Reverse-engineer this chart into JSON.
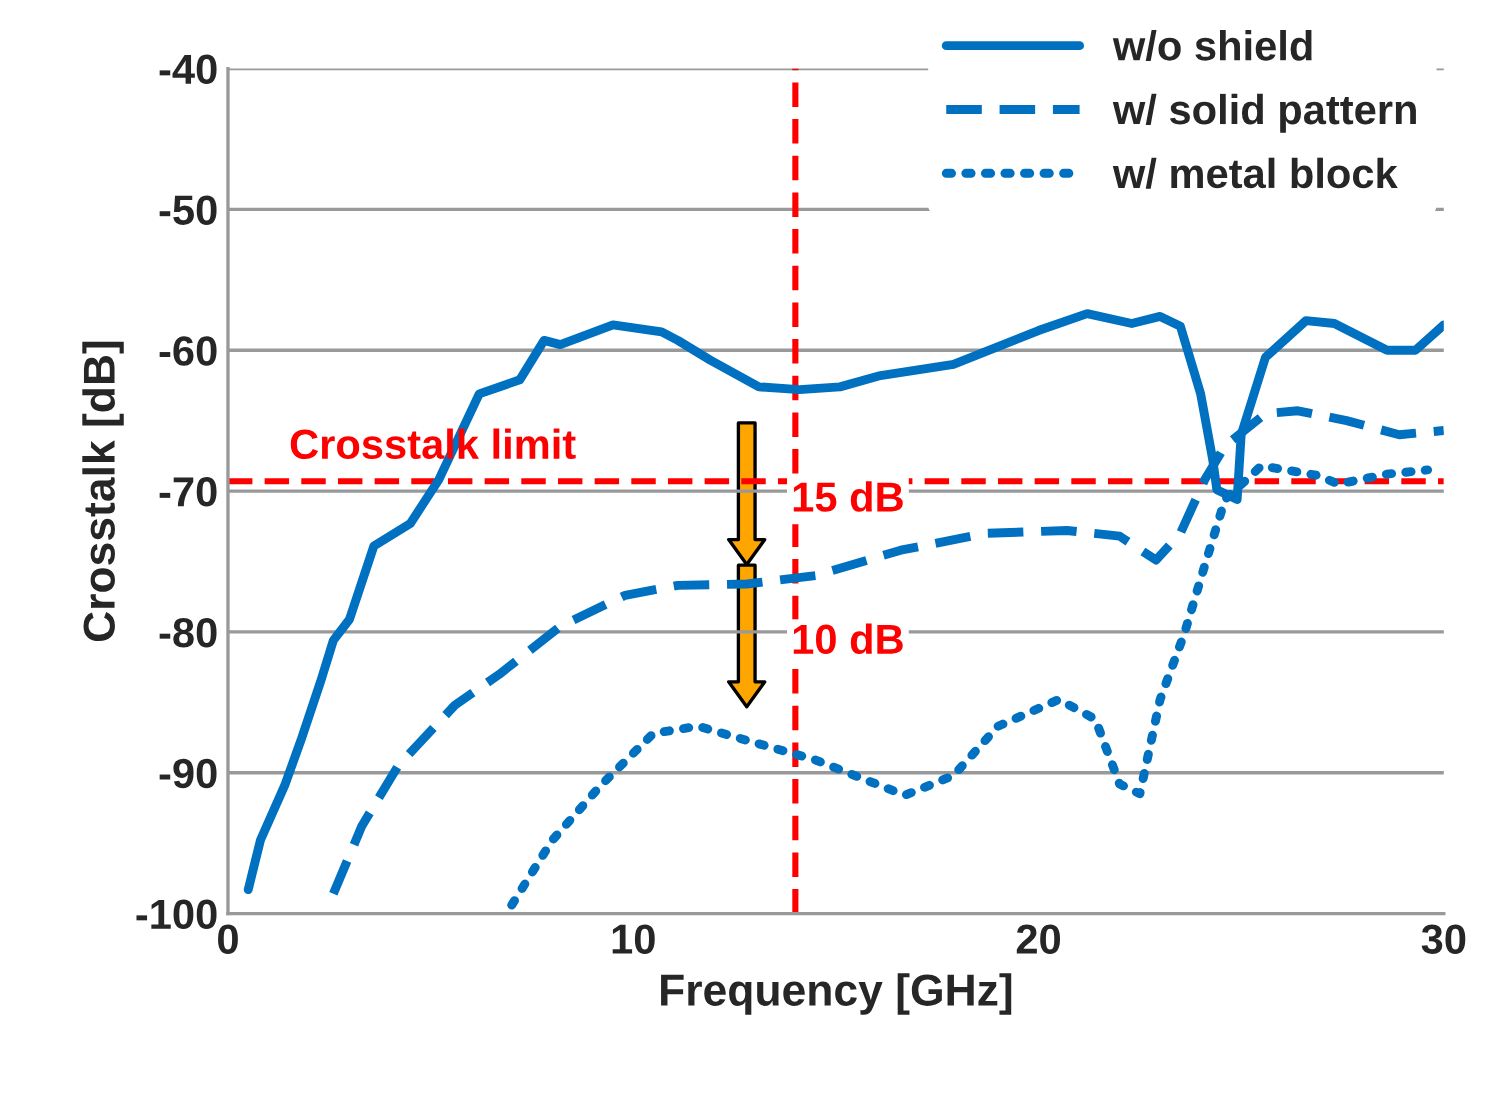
{
  "chart_data": {
    "type": "line",
    "xlabel": "Frequency [GHz]",
    "ylabel": "Crosstalk [dB]",
    "xlim": [
      0,
      30
    ],
    "xticks": [
      0,
      10,
      20,
      30
    ],
    "ylim": [
      -100,
      -40
    ],
    "yticks": [
      -100,
      -90,
      -80,
      -70,
      -60,
      -50,
      -40
    ],
    "grid": "y",
    "legend": "top right",
    "series": [
      {
        "name": "w/o shield",
        "color": "#0070c0",
        "line_style": "solid",
        "x": [
          0.5,
          0.8,
          1.4,
          1.8,
          2.3,
          2.6,
          3.0,
          3.6,
          4.5,
          5.2,
          6.2,
          7.2,
          7.8,
          8.2,
          9.5,
          10.7,
          11.1,
          11.9,
          13.1,
          14.1,
          15.1,
          16.1,
          17.9,
          20.0,
          21.2,
          22.3,
          23.0,
          23.5,
          24.0,
          24.3,
          24.4,
          24.9,
          25.0,
          25.6,
          26.6,
          27.3,
          28.6,
          29.3,
          30.0
        ],
        "values": [
          -98.3,
          -94.8,
          -90.9,
          -87.7,
          -83.4,
          -80.6,
          -79.1,
          -73.9,
          -72.3,
          -69.2,
          -63.1,
          -62.1,
          -59.3,
          -59.6,
          -58.2,
          -58.7,
          -59.3,
          -60.7,
          -62.6,
          -62.8,
          -62.6,
          -61.8,
          -61.0,
          -58.6,
          -57.4,
          -58.1,
          -57.6,
          -58.3,
          -63.1,
          -67.8,
          -69.9,
          -70.6,
          -66.0,
          -60.5,
          -57.9,
          -58.1,
          -60.0,
          -60.0,
          -58.2
        ]
      },
      {
        "name": "w/ solid pattern",
        "color": "#0070c0",
        "line_style": "dashed",
        "x": [
          2.6,
          3.3,
          4.2,
          5.6,
          6.7,
          8.2,
          9.8,
          11.1,
          12.8,
          14.5,
          16.6,
          18.7,
          20.7,
          22.0,
          22.9,
          23.5,
          24.1,
          24.6,
          25.6,
          26.4,
          27.6,
          28.9,
          30.0
        ],
        "values": [
          -98.6,
          -93.8,
          -89.5,
          -85.2,
          -83.0,
          -79.6,
          -77.4,
          -76.7,
          -76.6,
          -76.0,
          -74.2,
          -73.0,
          -72.8,
          -73.2,
          -74.9,
          -73.0,
          -69.2,
          -66.8,
          -64.5,
          -64.3,
          -65.0,
          -66.0,
          -65.7
        ]
      },
      {
        "name": "w/ metal block",
        "color": "#0070c0",
        "line_style": "dotted",
        "x": [
          7.0,
          8.0,
          9.2,
          10.5,
          11.6,
          12.8,
          14.5,
          16.7,
          17.9,
          19.0,
          20.5,
          21.4,
          22.0,
          22.5,
          23.0,
          23.6,
          24.1,
          24.6,
          25.5,
          26.9,
          27.4,
          28.6,
          29.6
        ],
        "values": [
          -99.4,
          -94.8,
          -90.9,
          -87.2,
          -86.7,
          -87.7,
          -89.1,
          -91.6,
          -90.2,
          -86.7,
          -84.8,
          -86.2,
          -90.8,
          -91.5,
          -84.8,
          -80.1,
          -75.3,
          -70.6,
          -68.2,
          -68.9,
          -69.5,
          -68.8,
          -68.5
        ]
      }
    ],
    "ref_lines": [
      {
        "axis": "y",
        "value": -69.3,
        "label": "Crosstalk limit",
        "color": "#ff0000",
        "line_style": "dashed"
      },
      {
        "axis": "x",
        "value": 14,
        "color": "#ff0000",
        "line_style": "dashed"
      }
    ],
    "annotations": [
      {
        "text": "15 dB",
        "x": 12.8,
        "y": -76.6
      },
      {
        "text": "10 dB",
        "x": 12.8,
        "y": -86.7
      }
    ]
  }
}
